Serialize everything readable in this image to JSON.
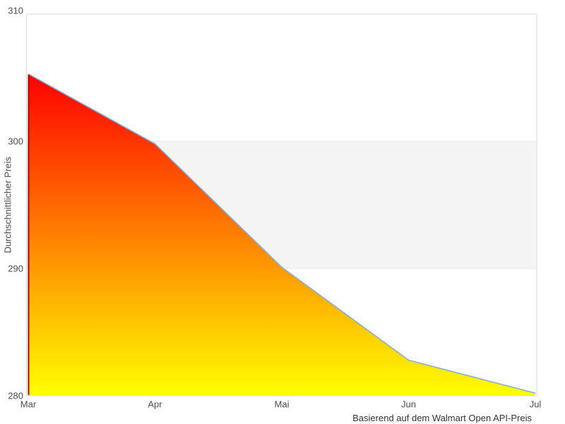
{
  "chart_data": {
    "type": "area",
    "title": "",
    "x_categories": [
      "Mar",
      "Apr",
      "Mai",
      "Jun",
      "Jul"
    ],
    "values": [
      305.3,
      299.8,
      290.1,
      282.8,
      280.2
    ],
    "xlabel": "",
    "ylabel": "Durchschnittlicher Preis",
    "caption": "Basierend auf dem Walmart Open API-Preis",
    "ylim": [
      280,
      310
    ],
    "yticks": [
      280,
      290,
      300,
      310
    ],
    "grid": "off",
    "legend": "none",
    "plot_band": {
      "from": 290,
      "to": 300,
      "fill": "#f4f4f4",
      "border_color": "#e7e7e7"
    },
    "colors": {
      "area_gradient_top": "#ff0000",
      "area_gradient_bottom": "#ffff00",
      "line": "#84aed6",
      "area_left_edge": "#b30000",
      "plot_border": "#d9d9d9",
      "tick_text": "#4d4d4d",
      "caption_text": "#333333",
      "background": "#ffffff"
    }
  }
}
